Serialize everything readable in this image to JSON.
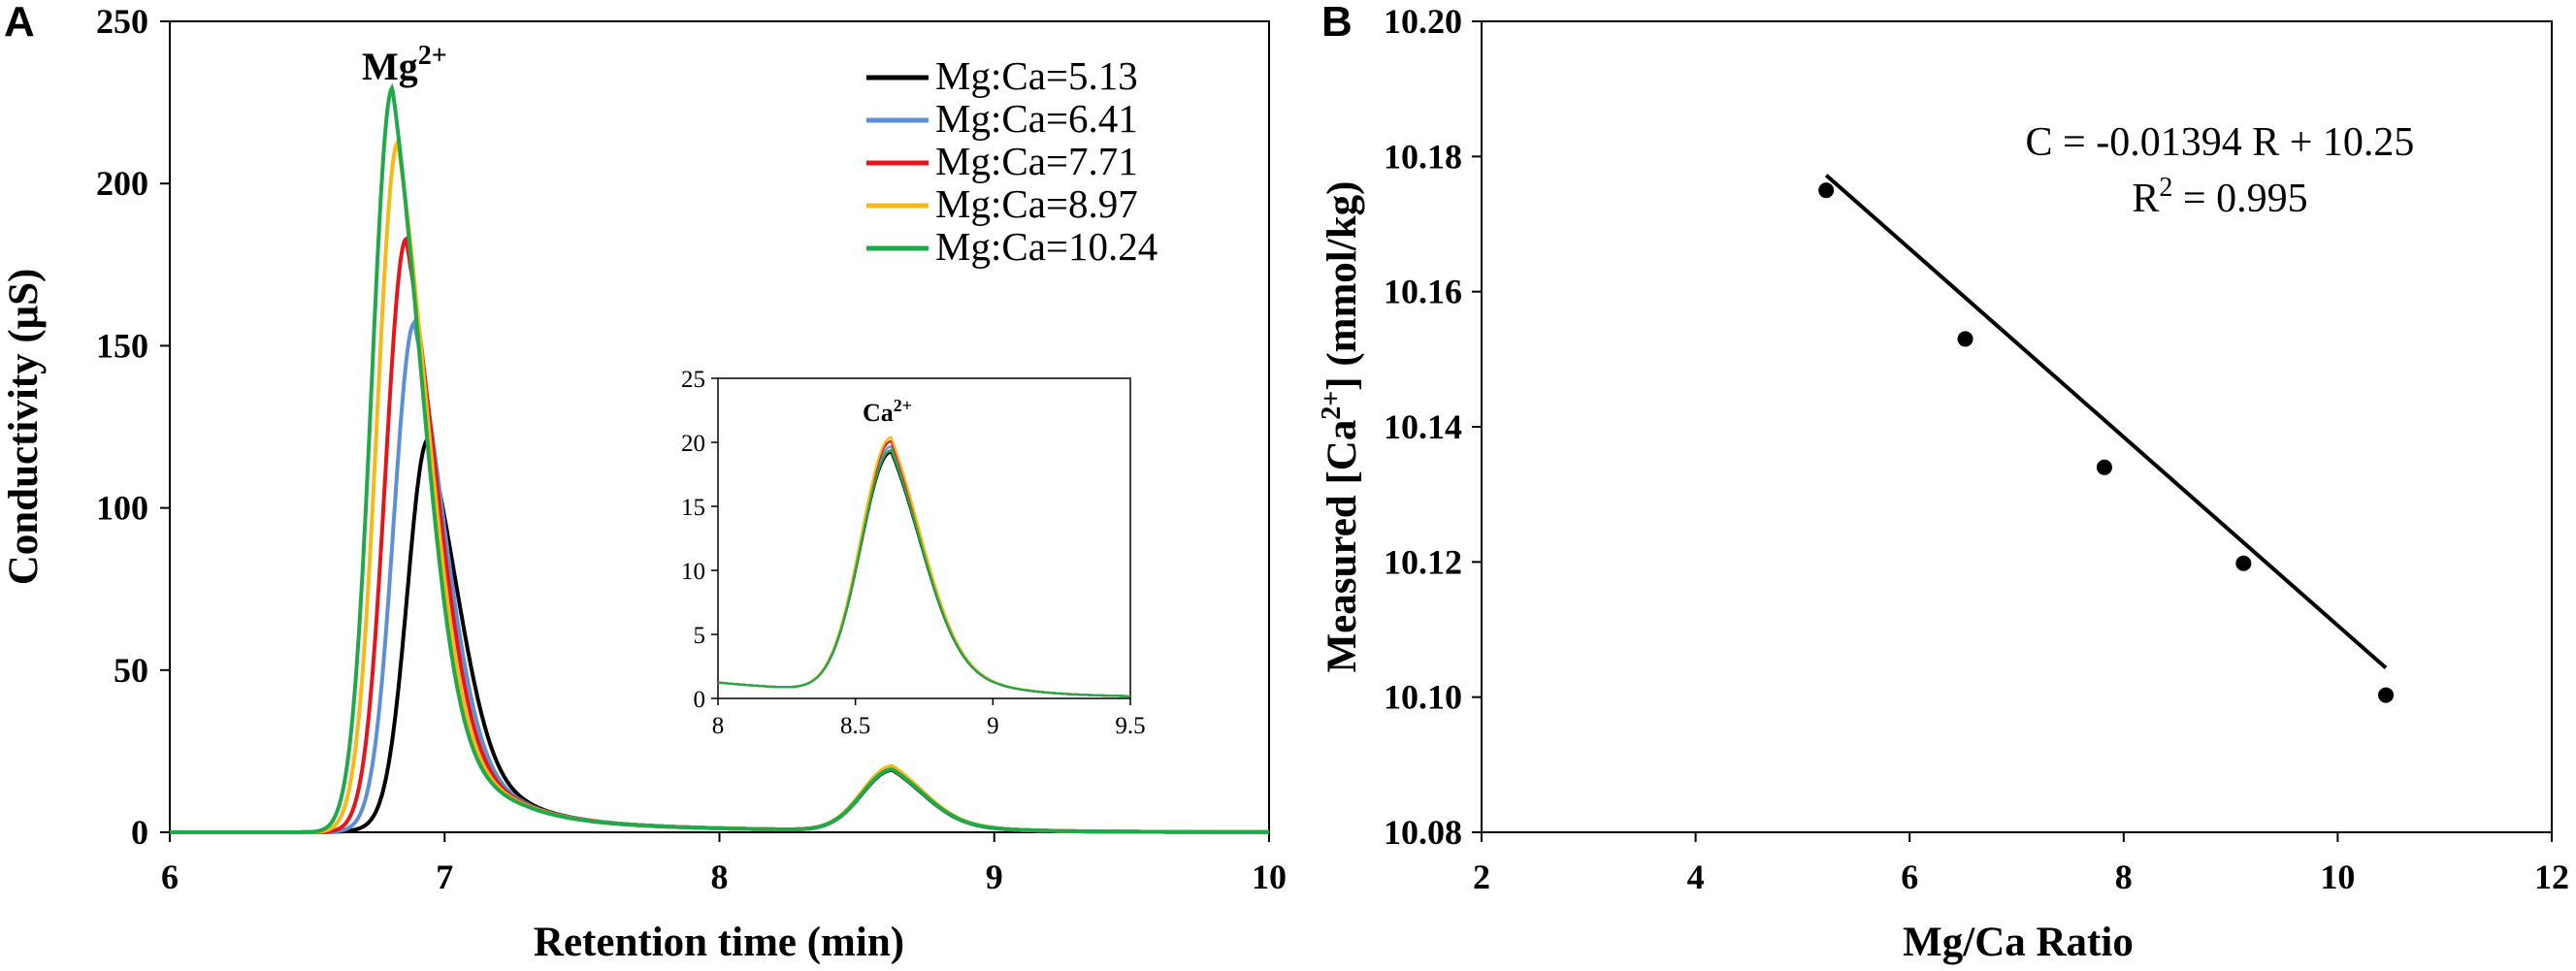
{
  "chart_data": [
    {
      "panel": "A",
      "type": "line",
      "xlabel": "Retention time (min)",
      "ylabel": "Conductivity (μS)",
      "xlim": [
        6,
        10
      ],
      "ylim": [
        0,
        250
      ],
      "xticks": [
        "6",
        "7",
        "8",
        "9",
        "10"
      ],
      "yticks": [
        "0",
        "50",
        "100",
        "150",
        "200",
        "250"
      ],
      "annotation": {
        "base": "Mg",
        "sup": "2+"
      },
      "legend": [
        "Mg:Ca=5.13",
        "Mg:Ca=6.41",
        "Mg:Ca=7.71",
        "Mg:Ca=8.97",
        "Mg:Ca=10.24"
      ],
      "series": [
        {
          "name": "Mg:Ca=5.13",
          "color": "#000000",
          "mg_peak_time": 6.94,
          "mg_peak_height": 118,
          "ca_peak_time": 8.63,
          "ca_peak_height": 18.7
        },
        {
          "name": "Mg:Ca=6.41",
          "color": "#5b8fd6",
          "mg_peak_time": 6.89,
          "mg_peak_height": 154,
          "ca_peak_time": 8.63,
          "ca_peak_height": 19.2
        },
        {
          "name": "Mg:Ca=7.71",
          "color": "#e8141c",
          "mg_peak_time": 6.86,
          "mg_peak_height": 180,
          "ca_peak_time": 8.63,
          "ca_peak_height": 19.6
        },
        {
          "name": "Mg:Ca=8.97",
          "color": "#f6b915",
          "mg_peak_time": 6.83,
          "mg_peak_height": 210,
          "ca_peak_time": 8.63,
          "ca_peak_height": 19.9
        },
        {
          "name": "Mg:Ca=10.24",
          "color": "#1fa94a",
          "mg_peak_time": 6.81,
          "mg_peak_height": 227,
          "ca_peak_time": 8.63,
          "ca_peak_height": 18.9
        }
      ],
      "inset": {
        "xlim": [
          8,
          9.5
        ],
        "ylim": [
          0,
          25
        ],
        "xticks": [
          "8",
          "8.5",
          "9",
          "9.5"
        ],
        "yticks": [
          "0",
          "5",
          "10",
          "15",
          "20",
          "25"
        ],
        "annotation": {
          "base": "Ca",
          "sup": "2+"
        }
      }
    },
    {
      "panel": "B",
      "type": "scatter",
      "xlabel": "Mg/Ca Ratio",
      "ylabel_main": "Measured [Ca",
      "ylabel_sup": "2+",
      "ylabel_tail": "]  (mmol/kg)",
      "xlim": [
        2,
        12
      ],
      "ylim": [
        10.08,
        10.2
      ],
      "xticks": [
        "2",
        "4",
        "6",
        "8",
        "10",
        "12"
      ],
      "yticks": [
        "10.08",
        "10.10",
        "10.12",
        "10.14",
        "10.16",
        "10.18",
        "10.20"
      ],
      "points": [
        {
          "x": 5.22,
          "y": 10.175
        },
        {
          "x": 6.52,
          "y": 10.153
        },
        {
          "x": 7.82,
          "y": 10.134
        },
        {
          "x": 9.12,
          "y": 10.1198
        },
        {
          "x": 10.45,
          "y": 10.1003
        }
      ],
      "fit": {
        "slope": -0.01394,
        "intercept": 10.25
      },
      "equation": "C = -0.01394 R + 10.25",
      "r2_base": "R",
      "r2_sup": "2",
      "r2_tail": " = 0.995"
    }
  ]
}
